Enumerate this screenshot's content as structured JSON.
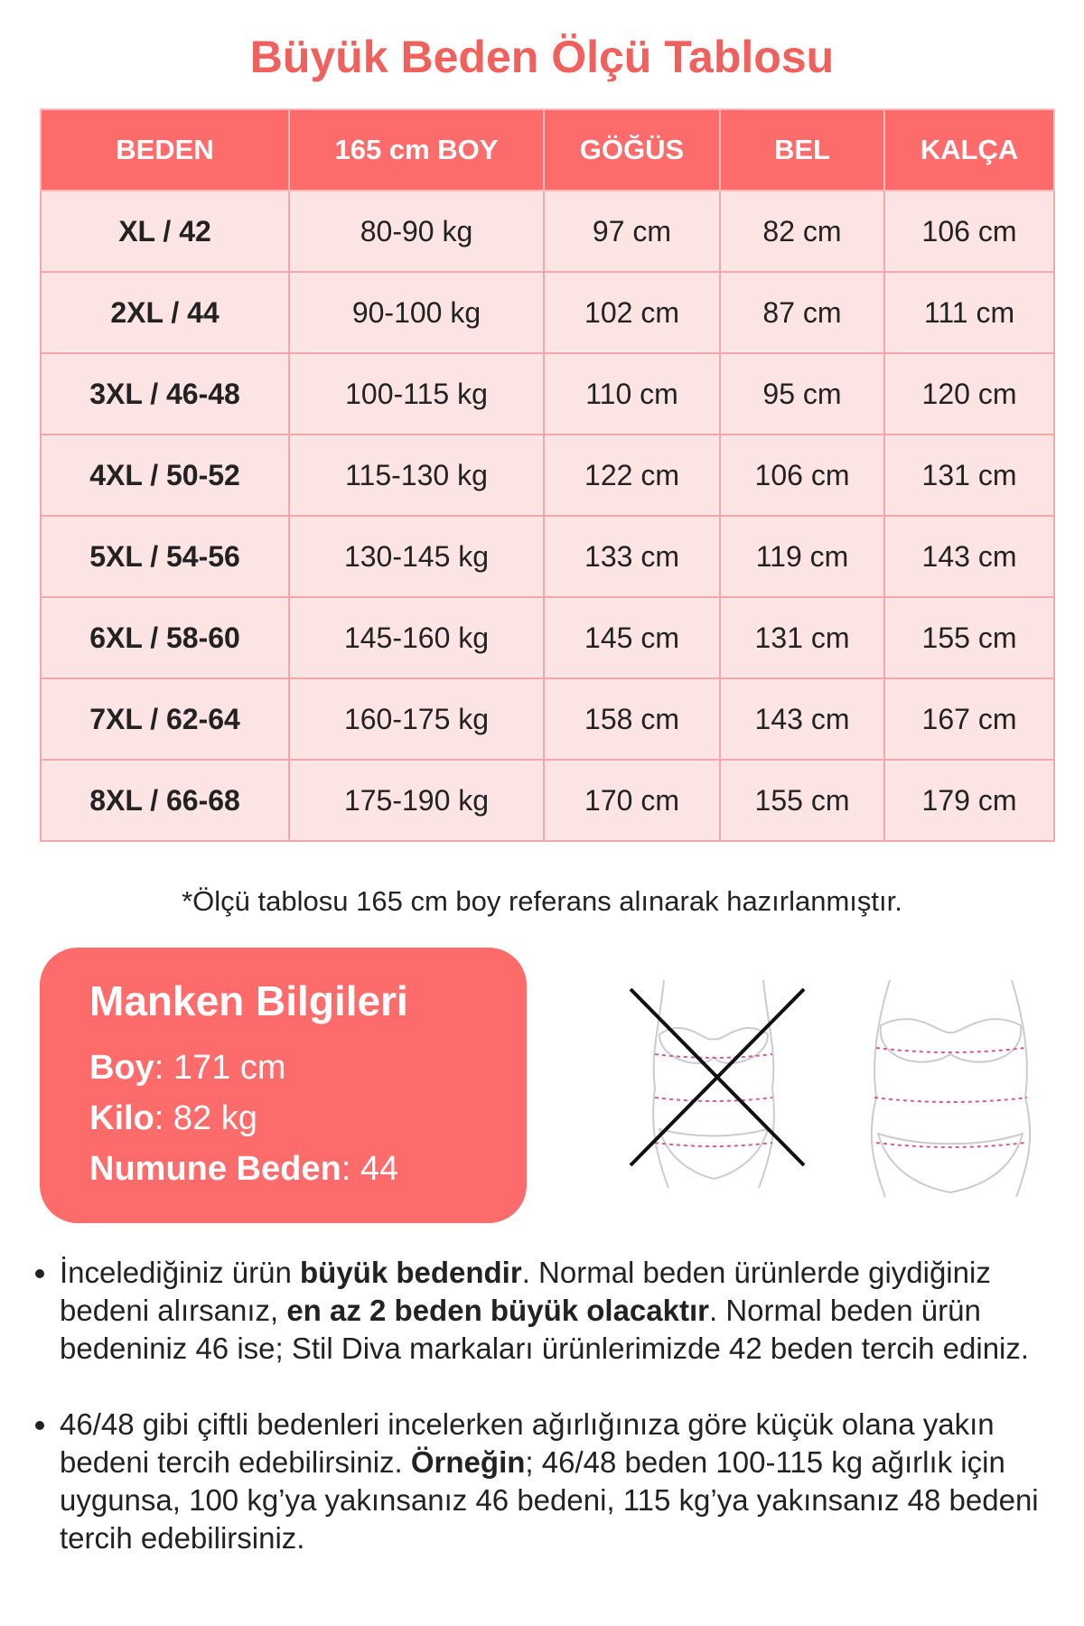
{
  "title": "Büyük Beden Ölçü Tablosu",
  "table": {
    "header": [
      "BEDEN",
      "165 cm BOY",
      "GÖĞÜS",
      "BEL",
      "KALÇA"
    ],
    "rows": [
      [
        "XL / 42",
        "80-90 kg",
        "97 cm",
        "82 cm",
        "106 cm"
      ],
      [
        "2XL / 44",
        "90-100 kg",
        "102 cm",
        "87 cm",
        "111 cm"
      ],
      [
        "3XL / 46-48",
        "100-115 kg",
        "110 cm",
        "95 cm",
        "120 cm"
      ],
      [
        "4XL / 50-52",
        "115-130 kg",
        "122 cm",
        "106 cm",
        "131 cm"
      ],
      [
        "5XL / 54-56",
        "130-145 kg",
        "133 cm",
        "119 cm",
        "143 cm"
      ],
      [
        "6XL / 58-60",
        "145-160 kg",
        "145 cm",
        "131 cm",
        "155 cm"
      ],
      [
        "7XL / 62-64",
        "160-175 kg",
        "158 cm",
        "143 cm",
        "167 cm"
      ],
      [
        "8XL / 66-68",
        "175-190 kg",
        "170 cm",
        "155 cm",
        "179 cm"
      ]
    ]
  },
  "note": "*Ölçü tablosu 165 cm boy referans alınarak hazırlanmıştır.",
  "model": {
    "title": "Manken Bilgileri",
    "items": [
      [
        {
          "text": "Boy",
          "bold": true
        },
        {
          "text": ": 171 cm",
          "bold": false
        }
      ],
      [
        {
          "text": "Kilo",
          "bold": true
        },
        {
          "text": ": 82 kg",
          "bold": false
        }
      ],
      [
        {
          "text": "Numune Beden",
          "bold": true
        },
        {
          "text": ": 44",
          "bold": false
        }
      ]
    ]
  },
  "bullets": [
    [
      {
        "text": "İncelediğiniz ürün ",
        "bold": false
      },
      {
        "text": "büyük bedendir",
        "bold": true
      },
      {
        "text": ". Normal beden ürünlerde giydiğiniz bedeni alırsanız, ",
        "bold": false
      },
      {
        "text": "en az 2 beden büyük olacaktır",
        "bold": true
      },
      {
        "text": ". Normal beden ürün bedeniniz 46 ise; Stil Diva markaları ürünlerimizde 42 beden tercih ediniz.",
        "bold": false
      }
    ],
    [
      {
        "text": "46/48 gibi çiftli bedenleri incelerken ağırlığınıza göre küçük olana yakın bedeni tercih edebilirsiniz. ",
        "bold": false
      },
      {
        "text": "Örneğin",
        "bold": true
      },
      {
        "text": "; 46/48 beden 100-115 kg ağırlık için uygunsa, 100 kg’ya yakınsanız 46 bedeni, 115 kg’ya yakınsanız 48 bedeni tercih edebilirsiniz.",
        "bold": false
      }
    ]
  ]
}
